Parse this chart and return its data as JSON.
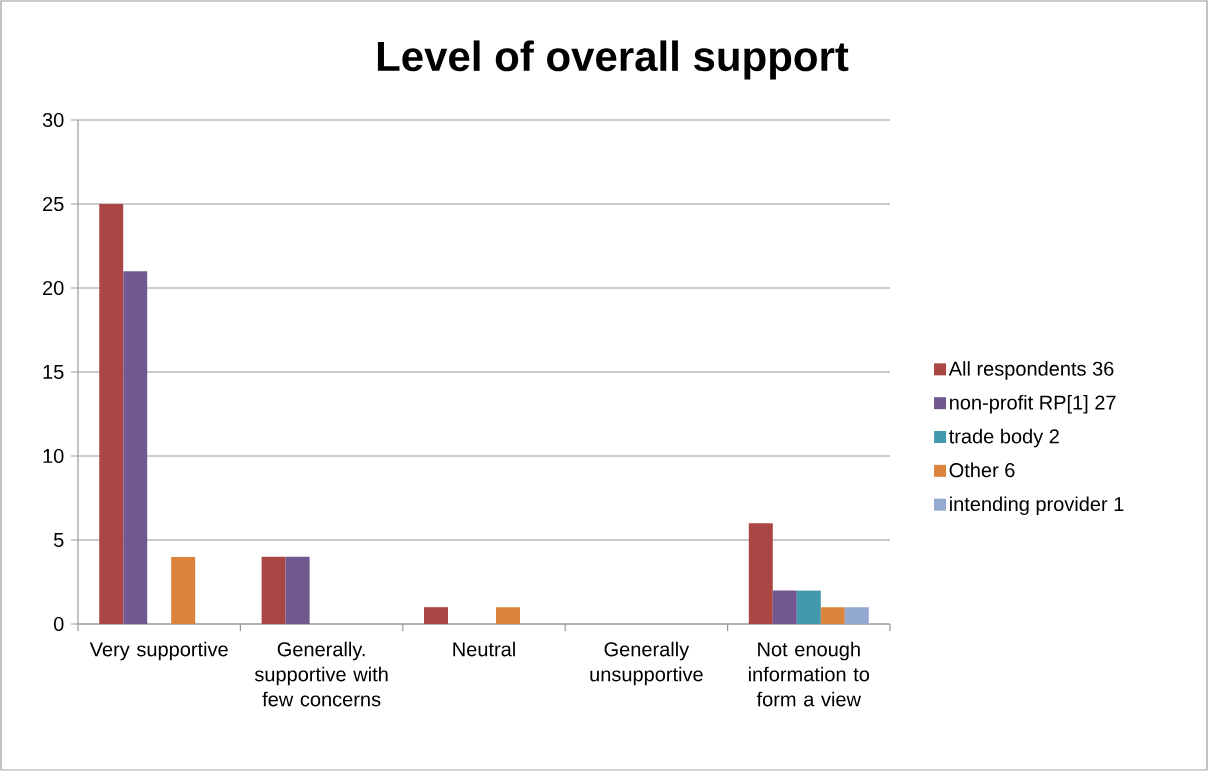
{
  "chart_data": {
    "type": "bar",
    "title": "Level of overall support",
    "categories": [
      "Very supportive",
      "Generally. supportive with few concerns",
      "Neutral",
      "Generally unsupportive",
      "Not enough information to form a view"
    ],
    "series": [
      {
        "name": "All respondents 36",
        "color": "#aa4643",
        "values": [
          25,
          4,
          1,
          0,
          6
        ]
      },
      {
        "name": "non-profit RP[1] 27",
        "color": "#71588f",
        "values": [
          21,
          4,
          0,
          0,
          2
        ]
      },
      {
        "name": "trade body 2",
        "color": "#4198af",
        "values": [
          0,
          0,
          0,
          0,
          2
        ]
      },
      {
        "name": "Other 6",
        "color": "#db843d",
        "values": [
          4,
          0,
          1,
          0,
          1
        ]
      },
      {
        "name": "intending provider 1",
        "color": "#93a9cf",
        "values": [
          0,
          0,
          0,
          0,
          1
        ]
      }
    ],
    "ylim": [
      0,
      30
    ],
    "yticks": [
      0,
      5,
      10,
      15,
      20,
      25,
      30
    ],
    "grid": "y",
    "legend": "right"
  }
}
